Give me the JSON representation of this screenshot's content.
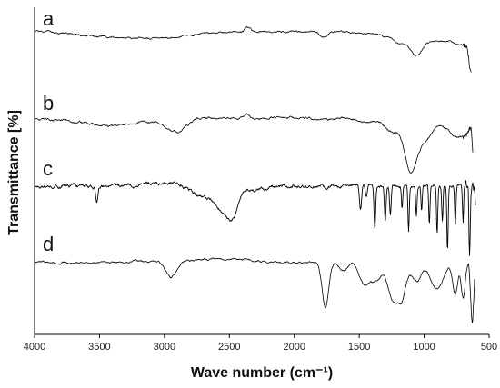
{
  "chart_data": {
    "type": "line",
    "xlabel": "Wave number (cm⁻¹)",
    "ylabel": "Transmittance [%]",
    "x_ticks": [
      4000,
      3500,
      3000,
      2500,
      2000,
      1500,
      1000,
      500
    ],
    "xlim": [
      4000,
      500
    ],
    "x_reversed": true,
    "grid": false,
    "line_color": "#000000",
    "series": [
      {
        "name": "a",
        "baseline": 35,
        "features": [
          {
            "x": 3700,
            "depth": 1,
            "width": 150
          },
          {
            "x": 3300,
            "depth": 6,
            "width": 250
          },
          {
            "x": 2950,
            "depth": 4,
            "width": 150
          },
          {
            "x": 2365,
            "depth": -4,
            "width": 18
          },
          {
            "x": 2340,
            "depth": -2,
            "width": 12
          },
          {
            "x": 1775,
            "depth": 6,
            "width": 30
          },
          {
            "x": 1510,
            "depth": 2,
            "width": 50
          },
          {
            "x": 1300,
            "depth": 4,
            "width": 60
          },
          {
            "x": 1180,
            "depth": 12,
            "width": 50
          },
          {
            "x": 1060,
            "depth": 24,
            "width": 50
          },
          {
            "x": 900,
            "depth": 10,
            "width": 80
          },
          {
            "x": 700,
            "depth": 14,
            "width": 70
          },
          {
            "x": 640,
            "depth": 35,
            "width": 15
          }
        ],
        "noise": 1.2
      },
      {
        "name": "b",
        "baseline": 130,
        "features": [
          {
            "x": 3400,
            "depth": 8,
            "width": 250
          },
          {
            "x": 2925,
            "depth": 12,
            "width": 70
          },
          {
            "x": 2850,
            "depth": 5,
            "width": 40
          },
          {
            "x": 2365,
            "depth": -4,
            "width": 18
          },
          {
            "x": 2340,
            "depth": -2,
            "width": 12
          },
          {
            "x": 1740,
            "depth": 2,
            "width": 30
          },
          {
            "x": 1450,
            "depth": 4,
            "width": 50
          },
          {
            "x": 1250,
            "depth": 14,
            "width": 60
          },
          {
            "x": 1100,
            "depth": 58,
            "width": 50
          },
          {
            "x": 980,
            "depth": 22,
            "width": 50
          },
          {
            "x": 800,
            "depth": 12,
            "width": 60
          },
          {
            "x": 700,
            "depth": 16,
            "width": 60
          },
          {
            "x": 610,
            "depth": 70,
            "width": 12
          }
        ],
        "noise": 1.5
      },
      {
        "name": "c",
        "baseline": 205,
        "features": [
          {
            "x": 3520,
            "depth": 18,
            "width": 8
          },
          {
            "x": 3000,
            "depth": -3,
            "width": 150
          },
          {
            "x": 2700,
            "depth": 14,
            "width": 80
          },
          {
            "x": 2550,
            "depth": 24,
            "width": 50
          },
          {
            "x": 2470,
            "depth": 30,
            "width": 40
          },
          {
            "x": 2300,
            "depth": 4,
            "width": 60
          },
          {
            "x": 1490,
            "depth": 24,
            "width": 8
          },
          {
            "x": 1445,
            "depth": 12,
            "width": 8
          },
          {
            "x": 1380,
            "depth": 48,
            "width": 6
          },
          {
            "x": 1300,
            "depth": 38,
            "width": 6
          },
          {
            "x": 1260,
            "depth": 30,
            "width": 6
          },
          {
            "x": 1170,
            "depth": 24,
            "width": 5
          },
          {
            "x": 1120,
            "depth": 50,
            "width": 5
          },
          {
            "x": 1060,
            "depth": 32,
            "width": 5
          },
          {
            "x": 1020,
            "depth": 28,
            "width": 5
          },
          {
            "x": 960,
            "depth": 44,
            "width": 5
          },
          {
            "x": 900,
            "depth": 52,
            "width": 5
          },
          {
            "x": 860,
            "depth": 40,
            "width": 5
          },
          {
            "x": 820,
            "depth": 70,
            "width": 5
          },
          {
            "x": 760,
            "depth": 44,
            "width": 5
          },
          {
            "x": 700,
            "depth": 38,
            "width": 5
          },
          {
            "x": 650,
            "depth": 78,
            "width": 5
          },
          {
            "x": 600,
            "depth": 30,
            "width": 5
          }
        ],
        "noise": 2.4
      },
      {
        "name": "d",
        "baseline": 288,
        "features": [
          {
            "x": 3600,
            "depth": 2,
            "width": 200
          },
          {
            "x": 2950,
            "depth": 18,
            "width": 40
          },
          {
            "x": 2500,
            "depth": -3,
            "width": 300
          },
          {
            "x": 2050,
            "depth": 2,
            "width": 200
          },
          {
            "x": 1760,
            "depth": 50,
            "width": 25
          },
          {
            "x": 1620,
            "depth": 10,
            "width": 30
          },
          {
            "x": 1460,
            "depth": 24,
            "width": 40
          },
          {
            "x": 1370,
            "depth": 20,
            "width": 40
          },
          {
            "x": 1240,
            "depth": 42,
            "width": 40
          },
          {
            "x": 1170,
            "depth": 34,
            "width": 30
          },
          {
            "x": 1060,
            "depth": 22,
            "width": 40
          },
          {
            "x": 900,
            "depth": 30,
            "width": 50
          },
          {
            "x": 760,
            "depth": 36,
            "width": 20
          },
          {
            "x": 700,
            "depth": 40,
            "width": 15
          },
          {
            "x": 630,
            "depth": 66,
            "width": 12
          }
        ],
        "noise": 1.4
      }
    ]
  }
}
